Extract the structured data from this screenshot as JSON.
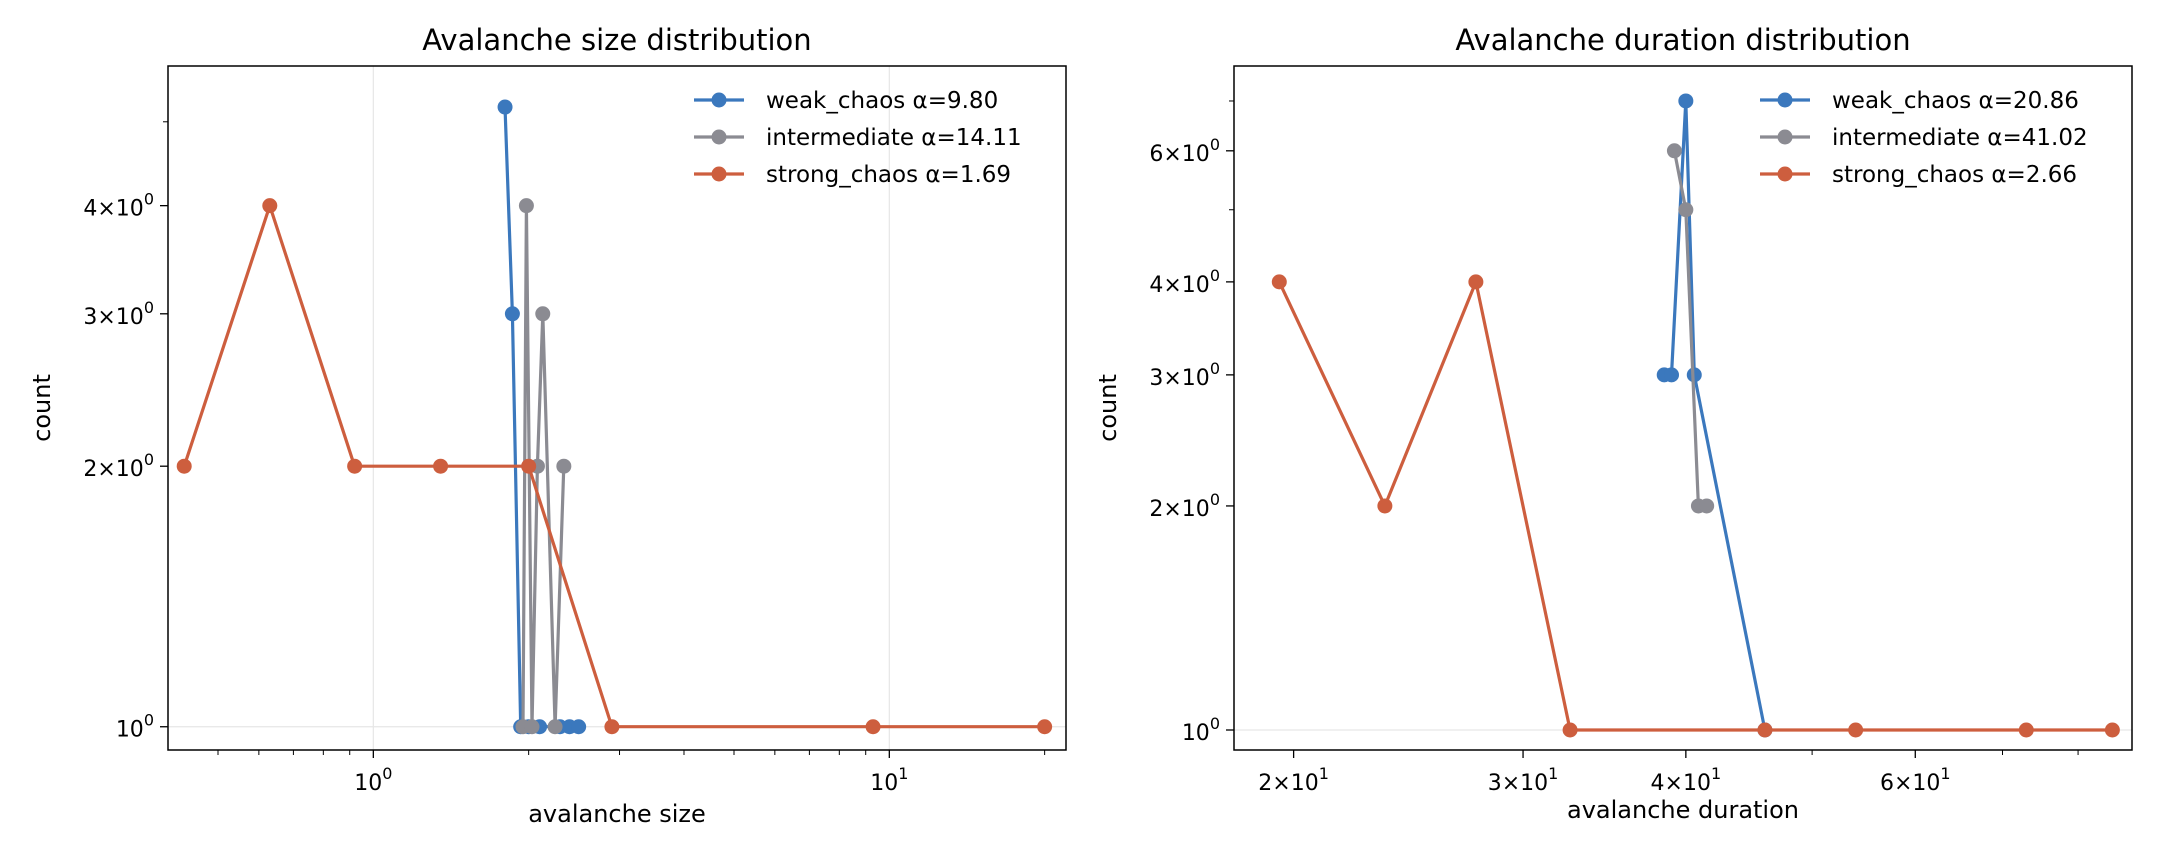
{
  "chart_data": [
    {
      "type": "line",
      "title": "Avalanche size distribution",
      "xlabel": "avalanche size",
      "ylabel": "count",
      "xscale": "log",
      "yscale": "log",
      "xlim": [
        0.4,
        22
      ],
      "ylim": [
        0.94,
        5.8
      ],
      "grid": true,
      "legend": "top-right",
      "xticks": [
        {
          "value": 1,
          "base": "10",
          "exp": "0"
        },
        {
          "value": 10,
          "base": "10",
          "exp": "1"
        }
      ],
      "yticks": [
        {
          "value": 1,
          "base": "10",
          "exp": "0"
        },
        {
          "value": 2,
          "mant": "2",
          "base": "10",
          "exp": "0"
        },
        {
          "value": 3,
          "mant": "3",
          "base": "10",
          "exp": "0"
        },
        {
          "value": 4,
          "mant": "4",
          "base": "10",
          "exp": "0"
        }
      ],
      "series": [
        {
          "name": "weak_chaos α=9.80",
          "color": "#3b78bd",
          "x": [
            1.8,
            1.86,
            1.93,
            2.0,
            2.1,
            2.3,
            2.4,
            2.5
          ],
          "y": [
            5.2,
            3.0,
            1.0,
            1.0,
            1.0,
            1.0,
            1.0,
            1.0
          ]
        },
        {
          "name": "intermediate α=14.11",
          "color": "#8b8b92",
          "x": [
            1.95,
            1.98,
            2.03,
            2.08,
            2.13,
            2.25,
            2.34
          ],
          "y": [
            1.0,
            4.0,
            1.0,
            2.0,
            3.0,
            1.0,
            2.0
          ]
        },
        {
          "name": "strong_chaos α=1.69",
          "color": "#cd5e3e",
          "x": [
            0.43,
            0.63,
            0.92,
            1.35,
            2.0,
            2.9,
            9.3,
            20.0
          ],
          "y": [
            2.0,
            4.0,
            2.0,
            2.0,
            2.0,
            1.0,
            1.0,
            1.0
          ]
        }
      ]
    },
    {
      "type": "line",
      "title": "Avalanche duration distribution",
      "xlabel": "avalanche duration",
      "ylabel": "count",
      "xscale": "log",
      "yscale": "log",
      "xlim": [
        18,
        88
      ],
      "ylim": [
        0.94,
        7.8
      ],
      "grid": true,
      "legend": "top-right",
      "xticks": [
        {
          "value": 20,
          "mant": "2",
          "base": "10",
          "exp": "1"
        },
        {
          "value": 30,
          "mant": "3",
          "base": "10",
          "exp": "1"
        },
        {
          "value": 40,
          "mant": "4",
          "base": "10",
          "exp": "1"
        },
        {
          "value": 60,
          "mant": "6",
          "base": "10",
          "exp": "1"
        }
      ],
      "yticks": [
        {
          "value": 1,
          "base": "10",
          "exp": "0"
        },
        {
          "value": 2,
          "mant": "2",
          "base": "10",
          "exp": "0"
        },
        {
          "value": 3,
          "mant": "3",
          "base": "10",
          "exp": "0"
        },
        {
          "value": 4,
          "mant": "4",
          "base": "10",
          "exp": "0"
        },
        {
          "value": 6,
          "mant": "6",
          "base": "10",
          "exp": "0"
        }
      ],
      "series": [
        {
          "name": "weak_chaos α=20.86",
          "color": "#3b78bd",
          "x": [
            38.5,
            39.0,
            40.0,
            40.6,
            46.0
          ],
          "y": [
            3.0,
            3.0,
            7.0,
            3.0,
            1.0
          ]
        },
        {
          "name": "intermediate α=41.02",
          "color": "#8b8b92",
          "x": [
            39.2,
            40.0,
            40.9,
            41.5
          ],
          "y": [
            6.0,
            5.0,
            2.0,
            2.0
          ]
        },
        {
          "name": "strong_chaos α=2.66",
          "color": "#cd5e3e",
          "x": [
            19.5,
            23.5,
            27.6,
            32.6,
            46.0,
            54.0,
            73.0,
            85.0
          ],
          "y": [
            4.0,
            2.0,
            4.0,
            1.0,
            1.0,
            1.0,
            1.0,
            1.0
          ]
        }
      ]
    }
  ]
}
